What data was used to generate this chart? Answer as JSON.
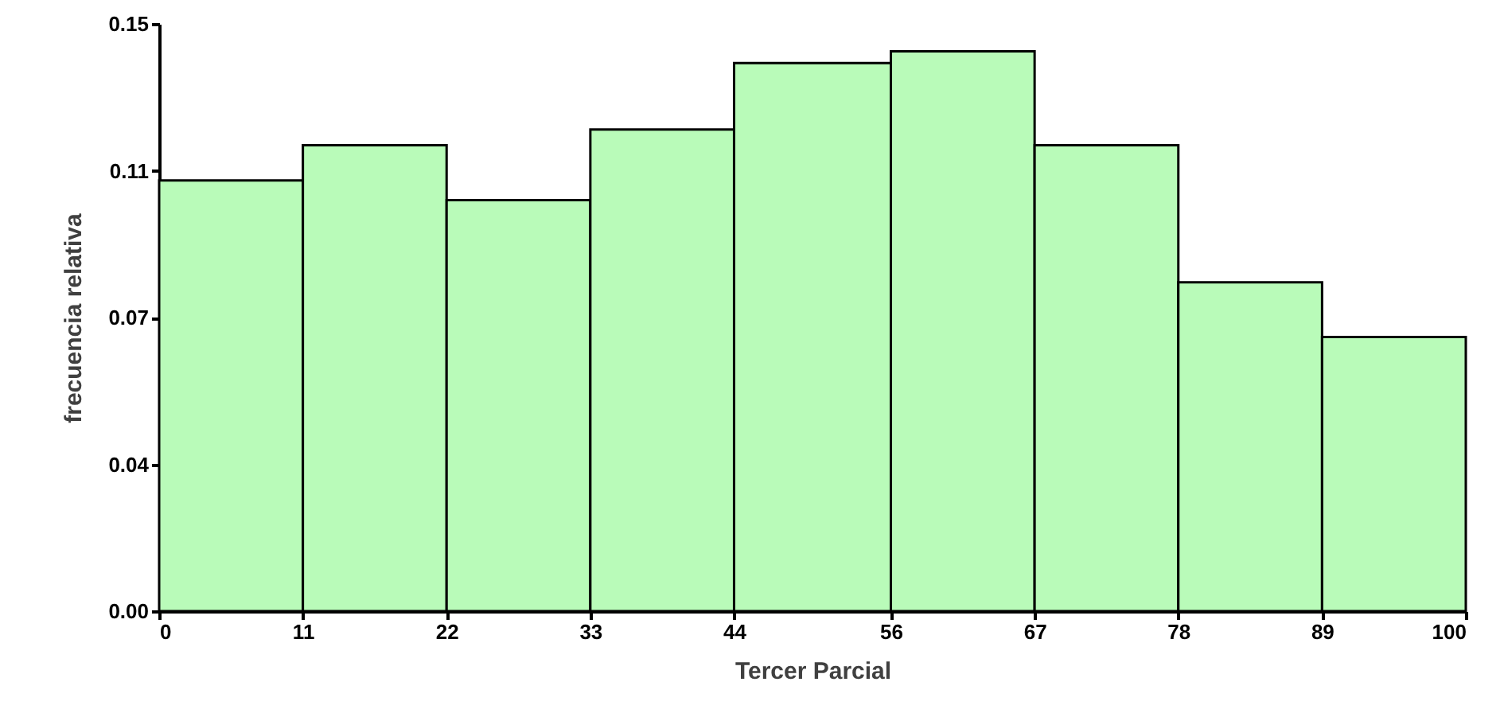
{
  "chart_data": {
    "type": "histogram",
    "xlabel": "Tercer Parcial",
    "ylabel": "frecuencia relativa",
    "color": "#b9fbb9",
    "bins": [
      0,
      11,
      22,
      33,
      44,
      56,
      67,
      78,
      89,
      100
    ],
    "values": [
      0.11,
      0.119,
      0.105,
      0.123,
      0.14,
      0.143,
      0.119,
      0.084,
      0.07
    ],
    "xlim": [
      0,
      100
    ],
    "xticks": [
      0,
      11,
      22,
      33,
      44,
      56,
      67,
      78,
      89,
      100
    ],
    "ylim": [
      0,
      0.15
    ],
    "yticks": [
      {
        "value": 0,
        "label": "0.00"
      },
      {
        "value": 0.0375,
        "label": "0.04"
      },
      {
        "value": 0.075,
        "label": "0.07"
      },
      {
        "value": 0.1125,
        "label": "0.11"
      },
      {
        "value": 0.15,
        "label": "0.15"
      }
    ],
    "grid": false
  }
}
